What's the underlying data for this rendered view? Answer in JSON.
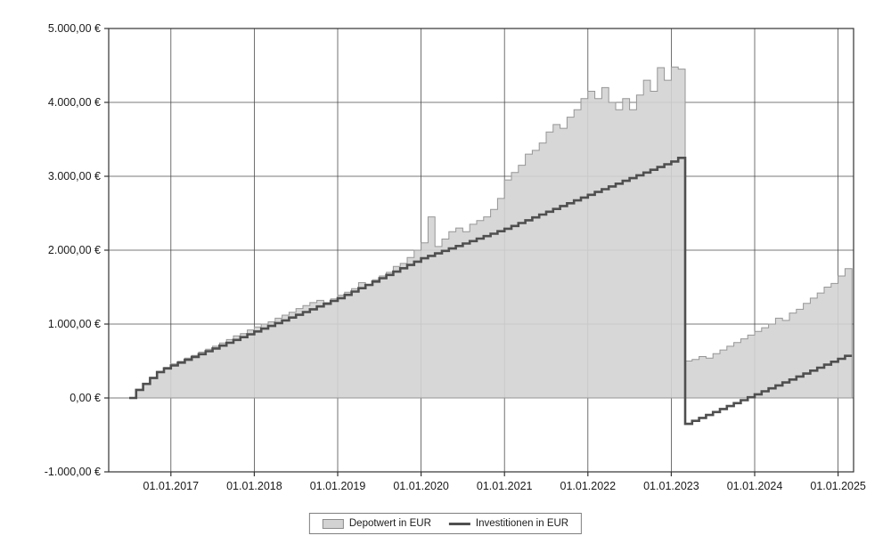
{
  "chart_data": {
    "type": "area",
    "title": "",
    "xlabel": "",
    "ylabel": "",
    "ylim": [
      -1000,
      5000
    ],
    "grid": true,
    "legend_position": "bottom-center",
    "background": "#ffffff",
    "x_start": "2016-07",
    "x_step_months": 1,
    "y_axis": {
      "ticks": [
        {
          "value": 5000,
          "label": "5.000,00 €"
        },
        {
          "value": 4000,
          "label": "4.000,00 €"
        },
        {
          "value": 3000,
          "label": "3.000,00 €"
        },
        {
          "value": 2000,
          "label": "2.000,00 €"
        },
        {
          "value": 1000,
          "label": "1.000,00 €"
        },
        {
          "value": 0,
          "label": "0,00 €"
        },
        {
          "value": -1000,
          "label": "-1.000,00 €"
        }
      ]
    },
    "x_axis": {
      "ticks": [
        {
          "month_index": 6,
          "label": "01.01.2017"
        },
        {
          "month_index": 18,
          "label": "01.01.2018"
        },
        {
          "month_index": 30,
          "label": "01.01.2019"
        },
        {
          "month_index": 42,
          "label": "01.01.2020"
        },
        {
          "month_index": 54,
          "label": "01.01.2021"
        },
        {
          "month_index": 66,
          "label": "01.01.2022"
        },
        {
          "month_index": 78,
          "label": "01.01.2023"
        },
        {
          "month_index": 90,
          "label": "01.01.2024"
        },
        {
          "month_index": 102,
          "label": "01.01.2025"
        }
      ]
    },
    "series": [
      {
        "name": "Depotwert in EUR",
        "type": "step-area",
        "fill": "#d3d3d3",
        "stroke": "#969696",
        "values": [
          0,
          110,
          195,
          280,
          360,
          415,
          460,
          495,
          540,
          575,
          620,
          660,
          700,
          745,
          790,
          840,
          870,
          920,
          960,
          1000,
          1030,
          1080,
          1120,
          1160,
          1210,
          1250,
          1290,
          1320,
          1290,
          1340,
          1390,
          1430,
          1480,
          1560,
          1520,
          1600,
          1650,
          1700,
          1780,
          1820,
          1900,
          2000,
          2100,
          2450,
          2050,
          2150,
          2250,
          2300,
          2250,
          2350,
          2400,
          2450,
          2550,
          2700,
          2950,
          3050,
          3150,
          3300,
          3350,
          3450,
          3600,
          3700,
          3650,
          3800,
          3900,
          4050,
          4150,
          4050,
          4200,
          4000,
          3900,
          4050,
          3900,
          4100,
          4300,
          4150,
          4470,
          4300,
          4480,
          4450,
          500,
          520,
          560,
          540,
          600,
          650,
          700,
          750,
          800,
          850,
          900,
          950,
          1000,
          1080,
          1050,
          1150,
          1200,
          1280,
          1350,
          1420,
          1500,
          1550,
          1650,
          1750
        ]
      },
      {
        "name": "Investitionen in EUR",
        "type": "step-line",
        "stroke": "#4f4f4f",
        "values": [
          0,
          110,
          190,
          270,
          350,
          400,
          440,
          478,
          517,
          555,
          593,
          632,
          670,
          708,
          747,
          785,
          823,
          862,
          900,
          938,
          975,
          1013,
          1050,
          1088,
          1125,
          1163,
          1200,
          1238,
          1275,
          1313,
          1350,
          1395,
          1440,
          1485,
          1530,
          1575,
          1620,
          1665,
          1710,
          1755,
          1800,
          1845,
          1890,
          1923,
          1957,
          1990,
          2023,
          2057,
          2090,
          2123,
          2157,
          2190,
          2223,
          2257,
          2290,
          2328,
          2367,
          2405,
          2443,
          2482,
          2520,
          2558,
          2597,
          2635,
          2673,
          2712,
          2750,
          2788,
          2825,
          2863,
          2900,
          2938,
          2975,
          3013,
          3050,
          3088,
          3125,
          3163,
          3200,
          3250,
          -350,
          -310,
          -270,
          -230,
          -190,
          -150,
          -110,
          -70,
          -30,
          10,
          50,
          90,
          130,
          170,
          210,
          250,
          290,
          330,
          370,
          410,
          450,
          490,
          530,
          570
        ]
      }
    ],
    "legend": [
      {
        "label": "Depotwert in EUR"
      },
      {
        "label": "Investitionen in EUR"
      }
    ],
    "colors": {
      "grid": "#4d4d4d",
      "axis_text": "#1a1a1a",
      "area_fill": "#d3d3d3",
      "area_stroke": "#969696",
      "line_stroke": "#4f4f4f"
    }
  }
}
